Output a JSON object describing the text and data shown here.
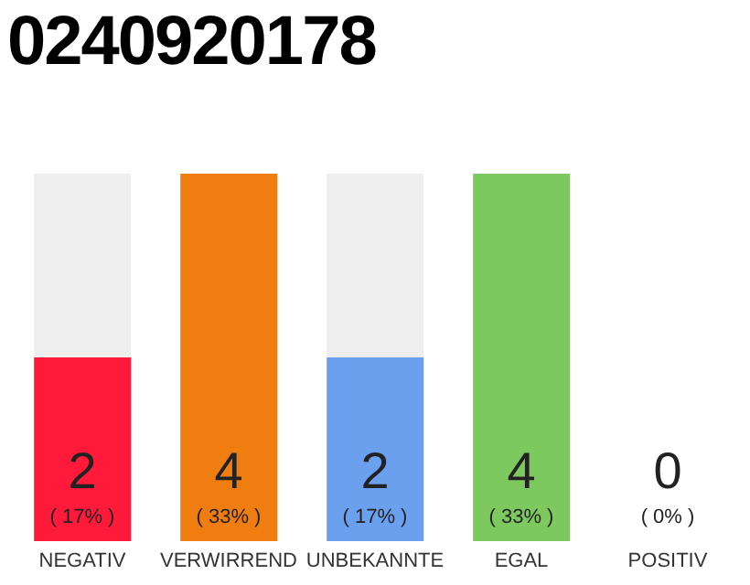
{
  "chart_data": {
    "type": "bar",
    "title": "0240920178",
    "categories": [
      "NEGATIV",
      "VERWIRREND",
      "UNBEKANNTE",
      "EGAL",
      "POSITIV"
    ],
    "values": [
      2,
      4,
      2,
      4,
      0
    ],
    "colors": [
      "#ff1a3c",
      "#f07d0f",
      "#6aa0ed",
      "#7ec95f",
      "#cccccc"
    ],
    "value_labels": [
      "2\n( 17% )",
      "4\n( 33% )",
      "2\n( 17% )",
      "4\n( 33% )",
      "0\n( 0% )"
    ],
    "ylim": [
      0,
      4
    ],
    "tick_labels": "x",
    "grid": false,
    "legend": false
  }
}
